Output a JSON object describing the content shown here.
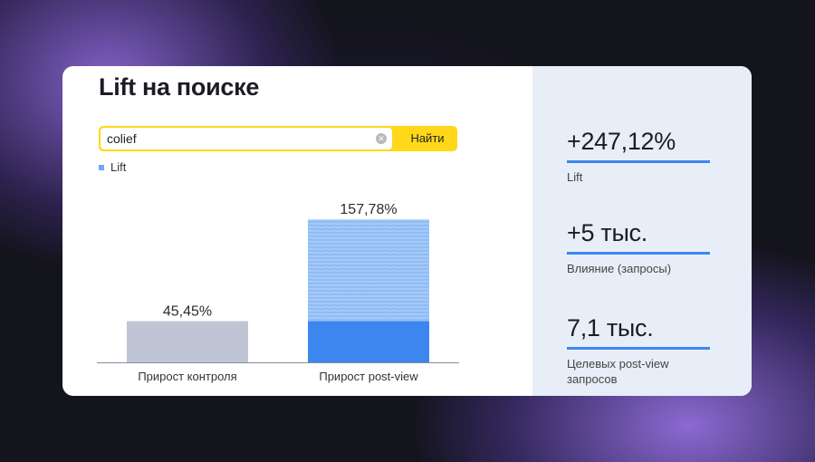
{
  "title": "Lift на поиске",
  "search": {
    "value": "colief",
    "button_label": "Найти"
  },
  "legend": {
    "label": "Lift",
    "color": "#6fa7f5"
  },
  "chart_data": {
    "type": "bar",
    "categories": [
      "Прирост контроля",
      "Прирост post-view"
    ],
    "values": [
      45.45,
      157.78
    ],
    "value_labels": [
      "45,45%",
      "157,78%"
    ],
    "stacked_base": [
      45.45,
      45.45
    ],
    "colors": {
      "control": "#bfc5d4",
      "postview_base": "#3d86f0",
      "postview_lift": "#8cbaf5"
    },
    "ylim": [
      0,
      180
    ],
    "grid": false
  },
  "metrics": [
    {
      "value": "+247,12%",
      "label": "Lift"
    },
    {
      "value": "+5 тыс.",
      "label": "Влияние (запросы)"
    },
    {
      "value": "7,1 тыс.",
      "label": "Целевых post-view запросов"
    }
  ],
  "colors": {
    "accent": "#3d86f0",
    "search_border": "#ffd81a",
    "panel_bg": "#e8eef7"
  }
}
